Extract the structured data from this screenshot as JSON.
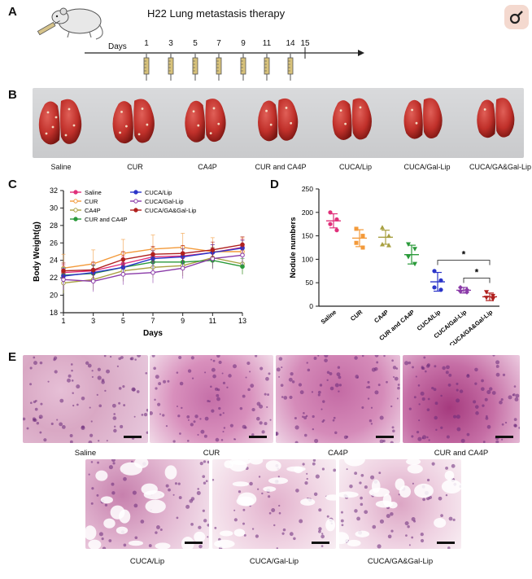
{
  "panels": {
    "a": "A",
    "b": "B",
    "c": "C",
    "d": "D",
    "e": "E"
  },
  "panelA": {
    "title": "H22 Lung metastasis therapy",
    "days_label": "Days",
    "days": [
      "1",
      "3",
      "5",
      "7",
      "9",
      "11",
      "14",
      "15"
    ]
  },
  "panelB": {
    "labels": [
      "Saline",
      "CUR",
      "CA4P",
      "CUR and CA4P",
      "CUCA/Lip",
      "CUCA/Gal-Lip",
      "CUCA/GA&Gal-Lip"
    ]
  },
  "colors": {
    "saline": "#e0307a",
    "cur": "#f39a3a",
    "ca4p": "#a8a040",
    "cur_ca4p": "#2a9a3a",
    "cuca_lip": "#2b35c9",
    "cuca_gal": "#8a3aa8",
    "cuca_ga_gal": "#b0201e"
  },
  "chart_data": [
    {
      "type": "line",
      "xlabel": "Days",
      "ylabel": "Body Weight(g)",
      "x": [
        1,
        3,
        5,
        7,
        9,
        11,
        13
      ],
      "xticks": [
        "1",
        "3",
        "5",
        "7",
        "9",
        "11",
        "13"
      ],
      "yticks": [
        "18",
        "20",
        "22",
        "24",
        "26",
        "28",
        "30",
        "32"
      ],
      "ylim": [
        18,
        32
      ],
      "legend": "top-left",
      "series": [
        {
          "name": "Saline",
          "values": [
            22.6,
            22.8,
            23.6,
            24.4,
            24.5,
            24.9,
            25.5
          ]
        },
        {
          "name": "CUR",
          "values": [
            23.1,
            23.6,
            24.8,
            25.3,
            25.5,
            25.0,
            25.0
          ]
        },
        {
          "name": "CA4P",
          "values": [
            21.4,
            21.8,
            22.8,
            23.2,
            23.4,
            24.3,
            23.6
          ]
        },
        {
          "name": "CUR and CA4P",
          "values": [
            22.3,
            22.5,
            23.2,
            23.8,
            23.8,
            24.0,
            23.3
          ]
        },
        {
          "name": "CUCA/Lip",
          "values": [
            22.2,
            22.6,
            23.2,
            24.2,
            24.4,
            24.9,
            25.4
          ]
        },
        {
          "name": "CUCA/Gal-Lip",
          "values": [
            21.8,
            21.6,
            22.4,
            22.6,
            23.1,
            24.2,
            24.6
          ]
        },
        {
          "name": "CUCA/GA&Gal-Lip",
          "values": [
            22.8,
            22.9,
            24.1,
            24.7,
            24.8,
            25.2,
            25.8
          ]
        }
      ]
    },
    {
      "type": "scatter",
      "ylabel": "Nodule numbers",
      "categories": [
        "Saline",
        "CUR",
        "CA4P",
        "CUR and CA4P",
        "CUCA/Lip",
        "CUCA/Gal-Lip",
        "CUCA/GA&Gal-Lip"
      ],
      "yticks": [
        "0",
        "50",
        "100",
        "150",
        "200",
        "250"
      ],
      "ylim": [
        0,
        250
      ],
      "means": [
        182,
        145,
        147,
        110,
        52,
        34,
        20
      ],
      "sd": [
        15,
        18,
        15,
        20,
        20,
        6,
        8
      ],
      "points": [
        [
          200,
          185,
          175,
          162
        ],
        [
          165,
          150,
          135,
          125
        ],
        [
          168,
          150,
          132,
          130
        ],
        [
          132,
          122,
          105,
          90
        ],
        [
          75,
          55,
          40,
          35
        ],
        [
          40,
          35,
          32,
          30
        ],
        [
          30,
          22,
          18,
          15
        ]
      ],
      "significance": [
        "*",
        "*"
      ]
    }
  ],
  "panelE": {
    "labels": [
      "Saline",
      "CUR",
      "CA4P",
      "CUR and CA4P",
      "CUCA/Lip",
      "CUCA/Gal-Lip",
      "CUCA/GA&Gal-Lip"
    ]
  }
}
